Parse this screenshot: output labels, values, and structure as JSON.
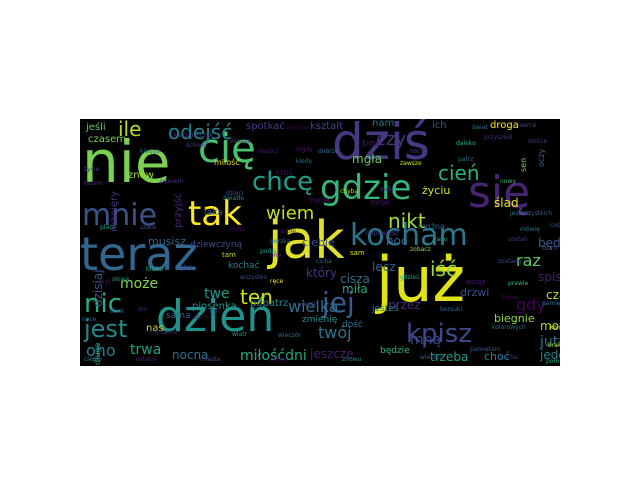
{
  "word_cloud": {
    "background": "#000000",
    "words": [
      {
        "text": "nie",
        "color": "#7ad151"
      },
      {
        "text": "cię",
        "color": "#4ac16d"
      },
      {
        "text": "dziś",
        "color": "#443a83"
      },
      {
        "text": "się",
        "color": "#482475"
      },
      {
        "text": "jak",
        "color": "#e0e22a"
      },
      {
        "text": "teraz",
        "color": "#31668e"
      },
      {
        "text": "już",
        "color": "#dfe318"
      },
      {
        "text": "dzień",
        "color": "#21918c"
      },
      {
        "text": "kocham",
        "color": "#2a788e"
      },
      {
        "text": "gdzie",
        "color": "#35b779"
      },
      {
        "text": "tak",
        "color": "#fde725"
      },
      {
        "text": "chcę",
        "color": "#1f9e89"
      },
      {
        "text": "mnie",
        "color": "#3b528b"
      },
      {
        "text": "więc",
        "color": "#414487"
      },
      {
        "text": "jej",
        "color": "#365c8d"
      },
      {
        "text": "kpisz",
        "color": "#3e4989"
      },
      {
        "text": "nic",
        "color": "#27ad81"
      },
      {
        "text": "jest",
        "color": "#23898e"
      },
      {
        "text": "odejść",
        "color": "#25848e"
      },
      {
        "text": "tylko",
        "color": "#22a884"
      },
      {
        "text": "ile",
        "color": "#b5de2b"
      },
      {
        "text": "wiem",
        "color": "#c2df23"
      },
      {
        "text": "nikt",
        "color": "#a0da39"
      },
      {
        "text": "iść",
        "color": "#8fd744"
      },
      {
        "text": "ten",
        "color": "#d2e21b"
      },
      {
        "text": "cień",
        "color": "#29af7f"
      },
      {
        "text": "czy",
        "color": "#46337e"
      },
      {
        "text": "twój",
        "color": "#2c728e"
      },
      {
        "text": "wielka",
        "color": "#2d708e"
      },
      {
        "text": "gdy",
        "color": "#440154"
      },
      {
        "text": "raz",
        "color": "#5ec962"
      },
      {
        "text": "oho",
        "color": "#287d8e"
      },
      {
        "text": "trwa",
        "color": "#1fa187"
      },
      {
        "text": "wszyscy",
        "color": "#20928c"
      },
      {
        "text": "może",
        "color": "#86d549"
      },
      {
        "text": "twe",
        "color": "#1e9b8a"
      },
      {
        "text": "mną",
        "color": "#3f4788"
      },
      {
        "text": "jutro",
        "color": "#2b758e"
      },
      {
        "text": "jeden",
        "color": "#26828e"
      },
      {
        "text": "mgła",
        "color": "#65cb5e"
      },
      {
        "text": "ciebie",
        "color": "#3d4e8a"
      },
      {
        "text": "znów",
        "color": "#a2da37"
      },
      {
        "text": "bez",
        "color": "#470d60"
      },
      {
        "text": "noc",
        "color": "#32648e"
      },
      {
        "text": "lecz",
        "color": "#355f8d"
      },
      {
        "text": "który",
        "color": "#453781"
      },
      {
        "text": "cisza",
        "color": "#2f6c8e"
      },
      {
        "text": "miła",
        "color": "#21a685"
      },
      {
        "text": "będę",
        "color": "#38598c"
      },
      {
        "text": "spisz",
        "color": "#481f70"
      },
      {
        "text": "przez",
        "color": "#472c7a"
      },
      {
        "text": "jeszcze",
        "color": "#481b6d"
      },
      {
        "text": "miłośćdni",
        "color": "#23a983"
      },
      {
        "text": "nocna",
        "color": "#2e6e8e"
      },
      {
        "text": "czas",
        "color": "#bddf26"
      },
      {
        "text": "możesz",
        "color": "#9bd93c"
      },
      {
        "text": "musisz",
        "color": "#34618d"
      },
      {
        "text": "drzwi",
        "color": "#3c508b"
      },
      {
        "text": "trzeba",
        "color": "#1f998a"
      },
      {
        "text": "choć",
        "color": "#277f8e"
      },
      {
        "text": "biegnie",
        "color": "#93d741"
      },
      {
        "text": "życiu",
        "color": "#d8e219"
      },
      {
        "text": "ślad",
        "color": "#e5e419"
      },
      {
        "text": "zima",
        "color": "#a8db34"
      },
      {
        "text": "jeśli",
        "color": "#5cc863"
      },
      {
        "text": "czasem",
        "color": "#75d054"
      },
      {
        "text": "spotkać",
        "color": "#433e85"
      },
      {
        "text": "kształt",
        "color": "#404688"
      },
      {
        "text": "nam",
        "color": "#2a768e"
      },
      {
        "text": "ich",
        "color": "#3a548c"
      },
      {
        "text": "droga",
        "color": "#fde725"
      },
      {
        "text": "mrok",
        "color": "#48186a"
      },
      {
        "text": "można",
        "color": "#2e6f8e"
      },
      {
        "text": "piosenka",
        "color": "#20928c"
      },
      {
        "text": "popatrz",
        "color": "#25858e"
      },
      {
        "text": "dość",
        "color": "#2c718e"
      },
      {
        "text": "będzie",
        "color": "#32b67a"
      },
      {
        "text": "długo",
        "color": "#1f988b"
      },
      {
        "text": "dzisiaj",
        "color": "#3b528b"
      },
      {
        "text": "przyjść",
        "color": "#482374"
      },
      {
        "text": "manięry",
        "color": "#472d7b"
      },
      {
        "text": "miłość",
        "color": "#e5e419"
      },
      {
        "text": "jaka",
        "color": "#38598c"
      },
      {
        "text": "kochać",
        "color": "#27808e"
      },
      {
        "text": "dziewczyną",
        "color": "#3e4a89"
      },
      {
        "text": "sama",
        "color": "#34618d"
      },
      {
        "text": "nas",
        "color": "#c8e020"
      },
      {
        "text": "ktoś",
        "color": "#46075a"
      },
      {
        "text": "mrok",
        "color": "#481769"
      },
      {
        "text": "zmienię",
        "color": "#21918c"
      },
      {
        "text": "jesteś",
        "color": "#287c8e"
      },
      {
        "text": "sam",
        "color": "#d5e21a"
      },
      {
        "text": "serce",
        "color": "#3f4889"
      },
      {
        "text": "słońce",
        "color": "#46337e"
      },
      {
        "text": "świat",
        "color": "#2c738e"
      },
      {
        "text": "wciąż",
        "color": "#481467"
      },
      {
        "text": "tam",
        "color": "#b8de29"
      },
      {
        "text": "dom",
        "color": "#3d4d8a"
      },
      {
        "text": "coś",
        "color": "#3a548c"
      },
      {
        "text": "ona",
        "color": "#482979"
      },
      {
        "text": "był",
        "color": "#46085c"
      },
      {
        "text": "wszystko",
        "color": "#3e4c8a"
      },
      {
        "text": "nigdy",
        "color": "#481f70"
      },
      {
        "text": "kiedy",
        "color": "#2a778e"
      },
      {
        "text": "zawsze",
        "color": "#d8e219"
      },
      {
        "text": "czarna",
        "color": "#470e61"
      },
      {
        "text": "noce",
        "color": "#31688e"
      },
      {
        "text": "obok",
        "color": "#365d8d"
      },
      {
        "text": "ręce",
        "color": "#fbe723"
      },
      {
        "text": "oczy",
        "color": "#35608d"
      },
      {
        "text": "sen",
        "color": "#7fd34e"
      },
      {
        "text": "dni",
        "color": "#482071"
      },
      {
        "text": "bo",
        "color": "#3b518b"
      },
      {
        "text": "gorzka",
        "color": "#2d718e"
      },
      {
        "text": "zostań",
        "color": "#453882"
      },
      {
        "text": "prawie",
        "color": "#34b679"
      },
      {
        "text": "przyszedł",
        "color": "#472e7c"
      },
      {
        "text": "głos",
        "color": "#3f4889"
      },
      {
        "text": "blisko",
        "color": "#2ab07f"
      },
      {
        "text": "wierzyć",
        "color": "#39558c"
      },
      {
        "text": "kocha",
        "color": "#433d84"
      },
      {
        "text": "pomyśl",
        "color": "#21a585"
      },
      {
        "text": "chyba",
        "color": "#bade28"
      },
      {
        "text": "swój",
        "color": "#3e4989"
      },
      {
        "text": "wiatr",
        "color": "#1f958b"
      },
      {
        "text": "wieczór",
        "color": "#2b748e"
      },
      {
        "text": "kiedyś",
        "color": "#30698e"
      },
      {
        "text": "powiem",
        "color": "#46327e"
      },
      {
        "text": "dzieci",
        "color": "#3a538b"
      },
      {
        "text": "smutno",
        "color": "#450457"
      },
      {
        "text": "daleko",
        "color": "#2ab07f"
      },
      {
        "text": "zobacz",
        "color": "#8bd646"
      },
      {
        "text": "rano",
        "color": "#20a386"
      },
      {
        "text": "zostanę",
        "color": "#3e4c8a"
      },
      {
        "text": "pamięć",
        "color": "#2c738e"
      },
      {
        "text": "kolor",
        "color": "#eae51a"
      },
      {
        "text": "ciepło",
        "color": "#26828e"
      },
      {
        "text": "ostatni",
        "color": "#482576"
      },
      {
        "text": "miasta",
        "color": "#3c4f8a"
      },
      {
        "text": "przed",
        "color": "#450559"
      },
      {
        "text": "znowu",
        "color": "#24868e"
      },
      {
        "text": "życie",
        "color": "#433e85"
      },
      {
        "text": "razem",
        "color": "#472f7d"
      },
      {
        "text": "płacz",
        "color": "#1e9c89"
      },
      {
        "text": "szare",
        "color": "#3b528b"
      },
      {
        "text": "deszcz",
        "color": "#481a6c"
      },
      {
        "text": "dobrze",
        "color": "#2e6e8e"
      },
      {
        "text": "nocy",
        "color": "#3f4788"
      },
      {
        "text": "nowy",
        "color": "#35b779"
      },
      {
        "text": "jestem",
        "color": "#2a788e"
      },
      {
        "text": "sobie",
        "color": "#48196b"
      },
      {
        "text": "moje",
        "color": "#440154"
      },
      {
        "text": "pamiętam",
        "color": "#39568c"
      },
      {
        "text": "wszystkich",
        "color": "#37598c"
      },
      {
        "text": "patrz",
        "color": "#2f6b8e"
      },
      {
        "text": "mówię",
        "color": "#2a768e"
      },
      {
        "text": "idę",
        "color": "#20938c"
      },
      {
        "text": "brak",
        "color": "#b0dd2f"
      },
      {
        "text": "twoje",
        "color": "#440256"
      },
      {
        "text": "borsuki",
        "color": "#31668e"
      },
      {
        "text": "kolorowych",
        "color": "#2d708e"
      },
      {
        "text": "kaczmarczyk",
        "color": "#404588"
      },
      {
        "text": "wiosna",
        "color": "#463480"
      },
      {
        "text": "odpowiedź",
        "color": "#3f4788"
      },
      {
        "text": "cicha",
        "color": "#2c738e"
      },
      {
        "text": "gdzieś",
        "color": "#20a486"
      },
      {
        "text": "słowa",
        "color": "#1f9f88"
      },
      {
        "text": "milczenie",
        "color": "#482878"
      },
      {
        "text": "schody",
        "color": "#433e85"
      },
      {
        "text": "światło",
        "color": "#20938c"
      },
      {
        "text": "podaj",
        "color": "#1fa088"
      },
      {
        "text": "wiersz",
        "color": "#3d4d8a"
      }
    ]
  }
}
